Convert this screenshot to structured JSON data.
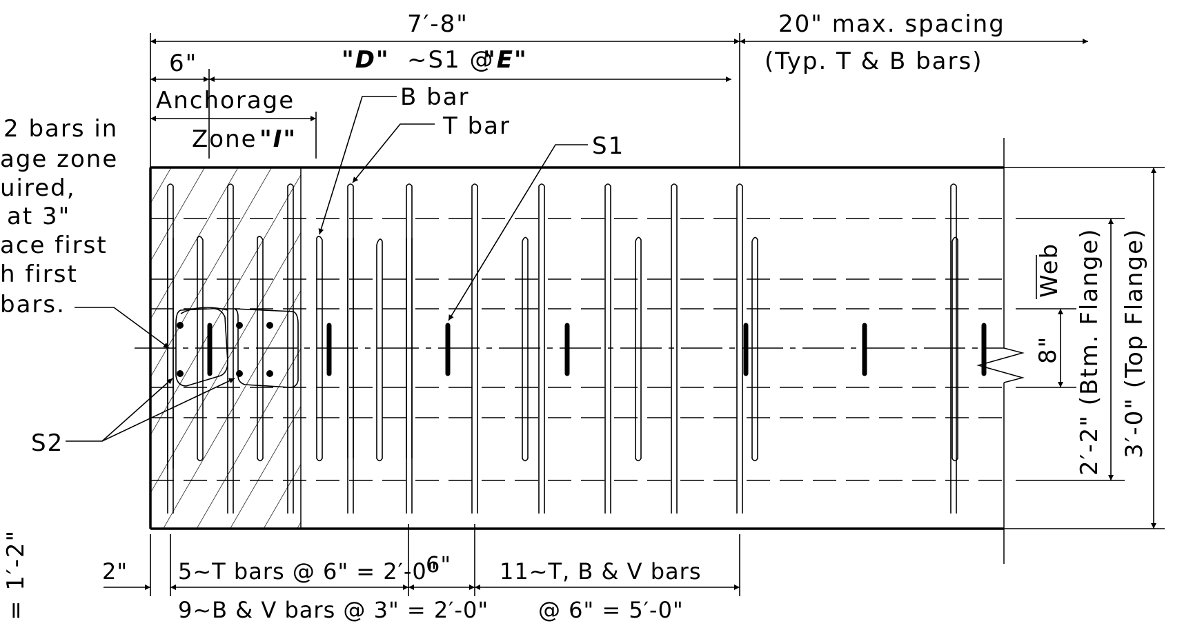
{
  "dims": {
    "total_length": "7′-8\"",
    "max_spacing": "20\" max. spacing",
    "typ_bars": "(Typ. T & B bars)",
    "six": "6\"",
    "d_label": "\"D\"",
    "s1_at": "~S1 @",
    "e_label": "\"E\"",
    "anchorage": "Anchorage",
    "zone": "Zone",
    "zone_i": "\"I\"",
    "two_inch": "2\"",
    "t_bars_spacing": "5~T bars @ 6\" = 2′-0\"",
    "bv_bars_spacing": "9~B & V bars @ 3\" = 2′-0\"",
    "six_mid": "6\"",
    "tbv_bars": "11~T, B & V bars",
    "tbv_spacing": "@ 6\" = 5′-0\"",
    "eight_inch": "8\"",
    "web": "Web",
    "btm_flange": "2′-2\" (Btm. Flange)",
    "top_flange": "3′-0\" (Top Flange)",
    "left_dim": "= 1′-2\""
  },
  "callouts": {
    "b_bar": "B bar",
    "t_bar": "T bar",
    "s1": "S1",
    "s2": "S2"
  },
  "note": {
    "line1": "2 bars in",
    "line2": "age zone",
    "line3": "uired,",
    "line4": "at 3\"",
    "line5": "ace first",
    "line6": "h first",
    "line7": "bars."
  }
}
